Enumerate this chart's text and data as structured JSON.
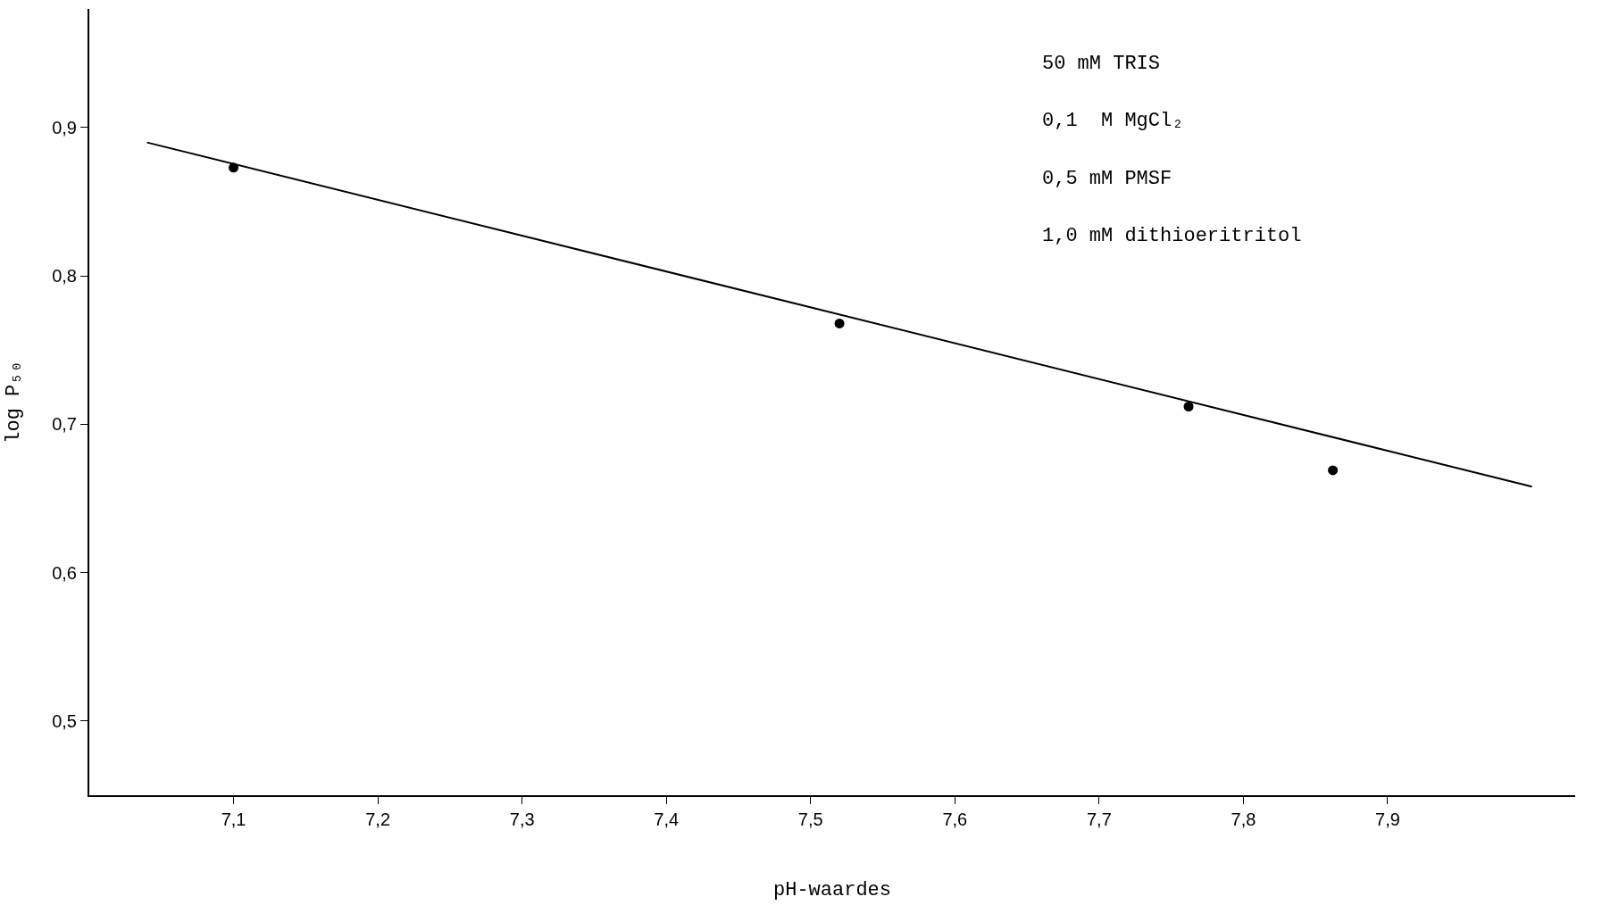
{
  "chart_data": {
    "type": "scatter",
    "xlabel": "pH-waardes",
    "ylabel": "log P₅₀",
    "series": [
      {
        "color": "#000000",
        "marker": "circle",
        "x": [
          7.1,
          7.52,
          7.762,
          7.862
        ],
        "values": [
          0.873,
          0.768,
          0.712,
          0.669
        ]
      },
      {
        "type": "line",
        "color": "#000000",
        "marker": "none",
        "line_style": "solid",
        "x": [
          7.04,
          8.0
        ],
        "values": [
          0.89,
          0.658
        ]
      }
    ],
    "xlim": [
      7.0,
      8.03
    ],
    "ylim": [
      0.45,
      0.98
    ],
    "xticks": [
      {
        "value": 7.1,
        "label": "7,1"
      },
      {
        "value": 7.2,
        "label": "7,2"
      },
      {
        "value": 7.3,
        "label": "7,3"
      },
      {
        "value": 7.4,
        "label": "7,4"
      },
      {
        "value": 7.5,
        "label": "7,5"
      },
      {
        "value": 7.6,
        "label": "7,6"
      },
      {
        "value": 7.7,
        "label": "7,7"
      },
      {
        "value": 7.8,
        "label": "7,8"
      },
      {
        "value": 7.9,
        "label": "7,9"
      }
    ],
    "yticks": [
      {
        "value": 0.5,
        "label": "0,5"
      },
      {
        "value": 0.6,
        "label": "0,6"
      },
      {
        "value": 0.7,
        "label": "0,7"
      },
      {
        "value": 0.8,
        "label": "0,8"
      },
      {
        "value": 0.9,
        "label": "0,9"
      }
    ],
    "annotations": [
      "50 mM TRIS",
      "0,1  M MgCl₂",
      "0,5 mM PMSF",
      "1,0 mM dithioeritritol"
    ]
  }
}
